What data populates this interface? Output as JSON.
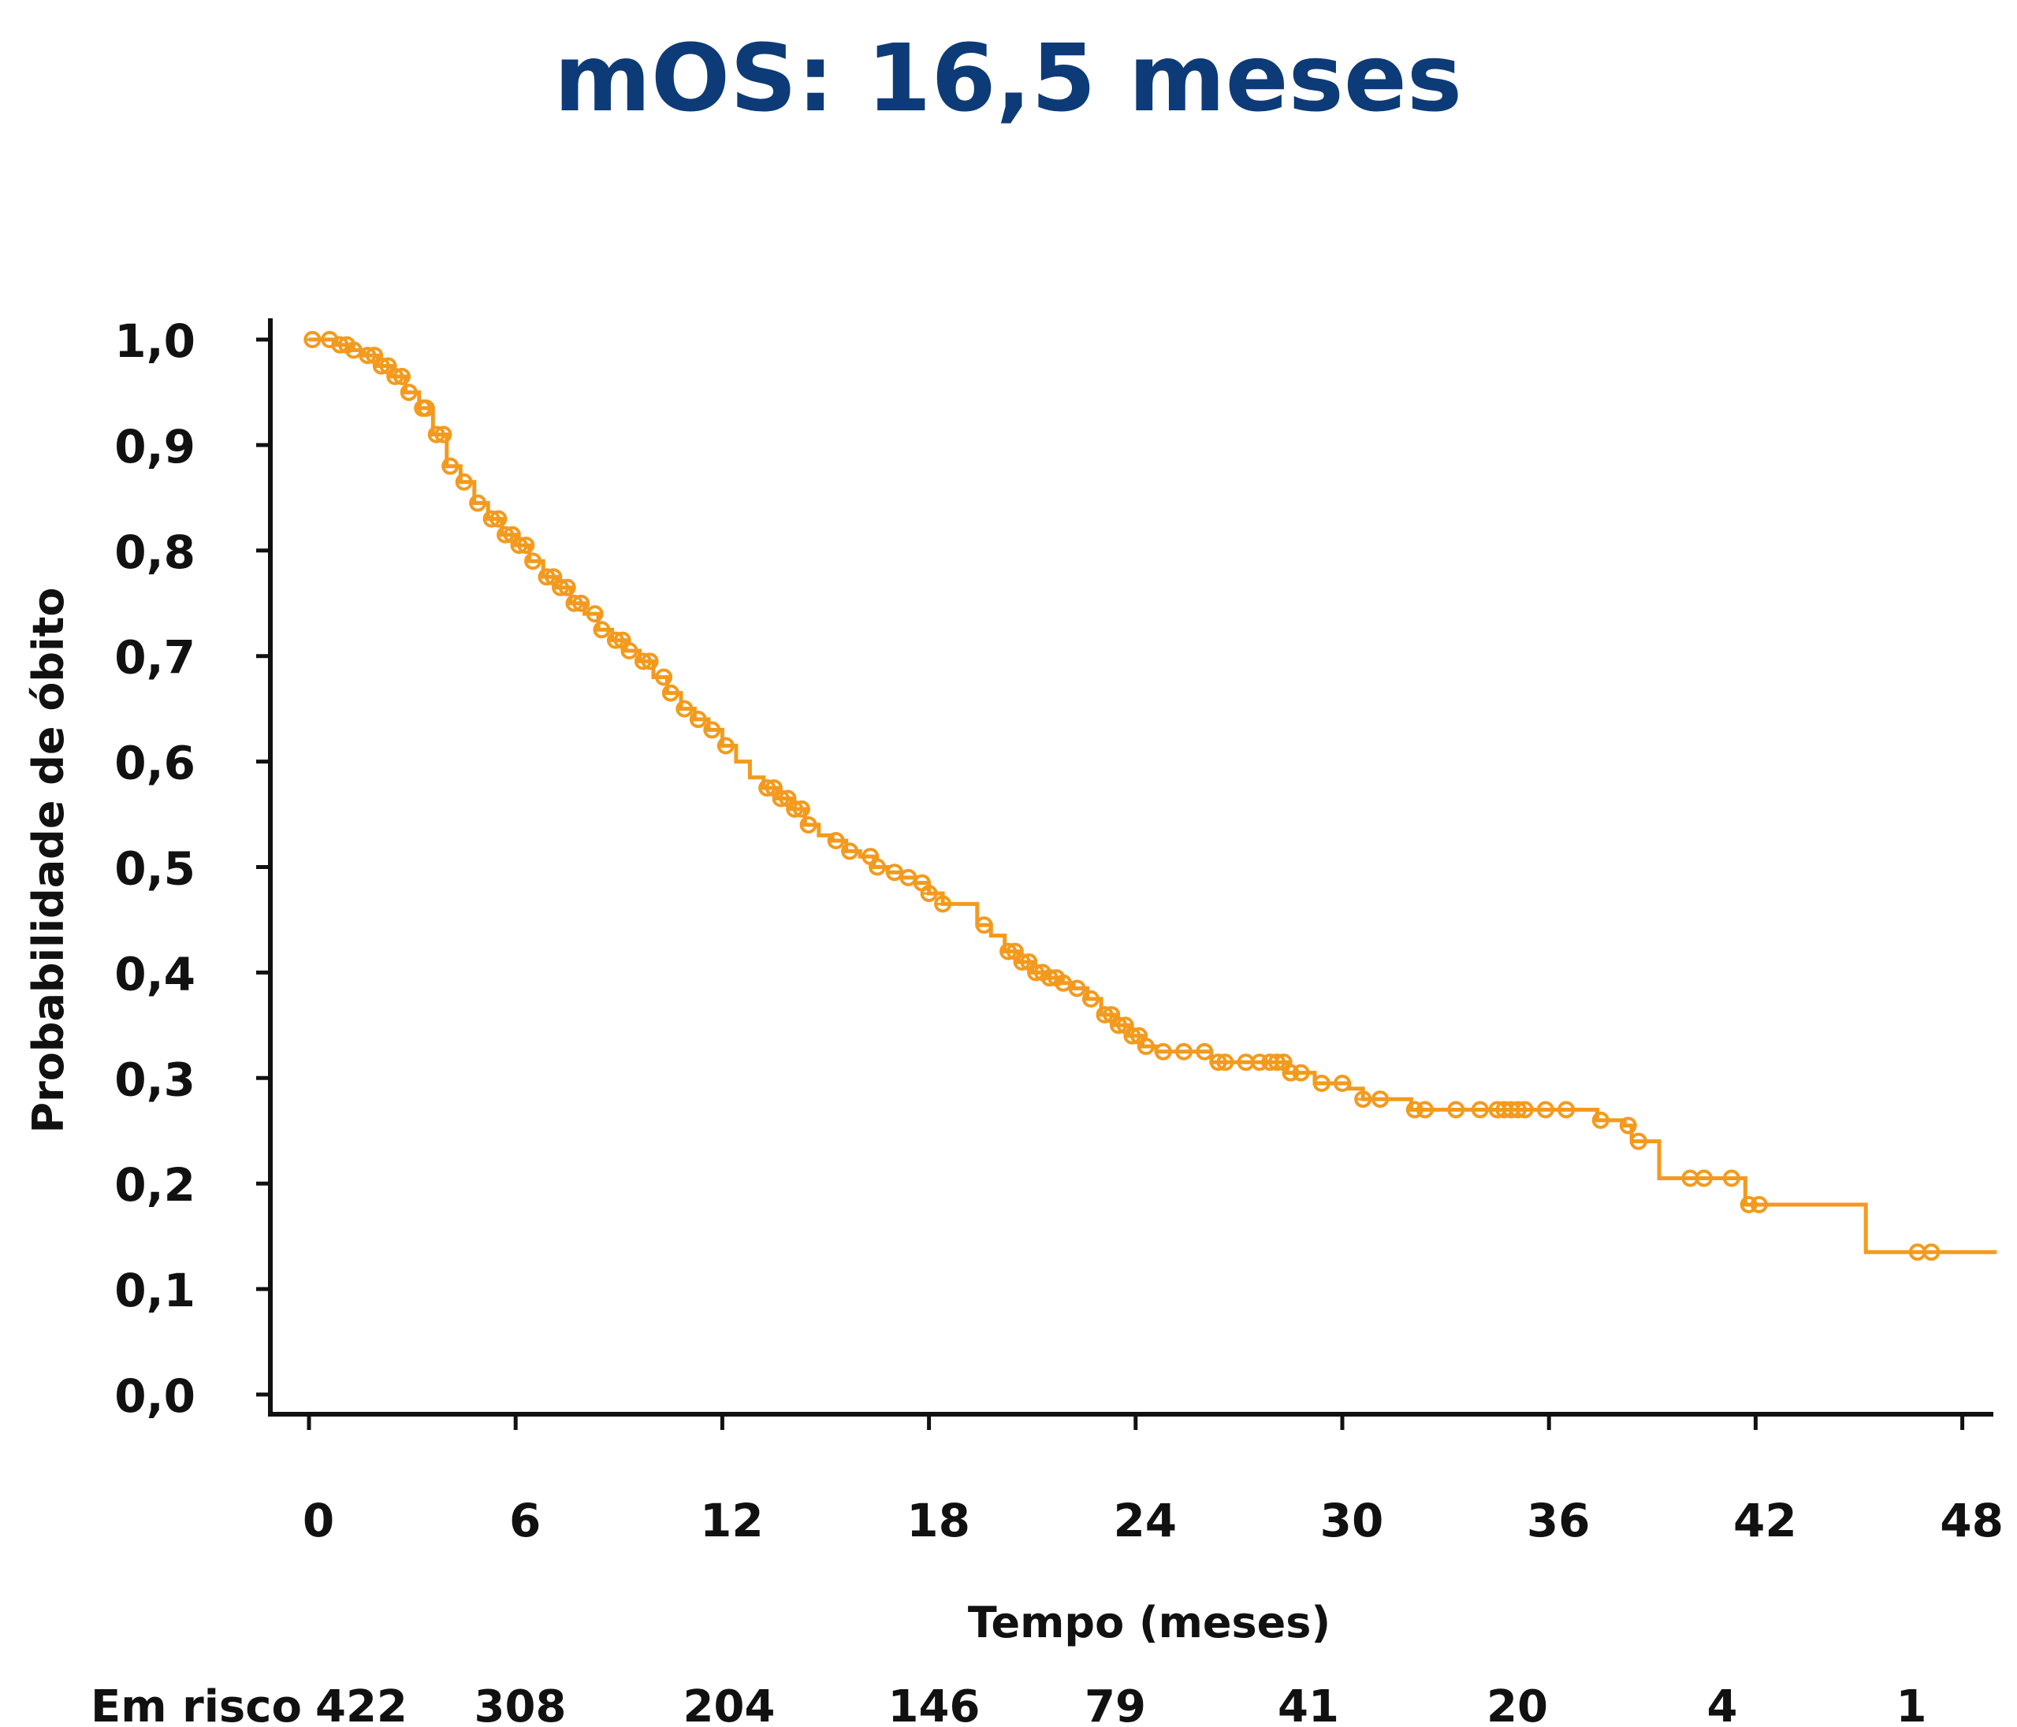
{
  "chart_data": {
    "type": "line",
    "title": "mOS: 16,5 meses",
    "xlabel": "Tempo (meses)",
    "ylabel": "Probabilidade de óbito",
    "xlim": [
      0,
      49
    ],
    "ylim": [
      0,
      1
    ],
    "grid": false,
    "x_ticks": [
      0,
      6,
      12,
      18,
      24,
      30,
      36,
      42,
      48
    ],
    "x_tick_labels": [
      "0",
      "6",
      "12",
      "18",
      "24",
      "30",
      "36",
      "42",
      "48"
    ],
    "y_ticks": [
      0,
      0.1,
      0.2,
      0.3,
      0.4,
      0.5,
      0.6,
      0.7,
      0.8,
      0.9,
      1.0
    ],
    "y_tick_labels": [
      "0,0",
      "0,1",
      "0,2",
      "0,3",
      "0,4",
      "0,5",
      "0,6",
      "0,7",
      "0,8",
      "0,9",
      "1,0"
    ],
    "color": "#f39a1e",
    "series": [
      {
        "name": "OS",
        "step_points": [
          [
            0,
            1.0
          ],
          [
            0.8,
            0.995
          ],
          [
            1.2,
            0.99
          ],
          [
            1.6,
            0.985
          ],
          [
            2.0,
            0.975
          ],
          [
            2.4,
            0.965
          ],
          [
            2.8,
            0.95
          ],
          [
            3.2,
            0.935
          ],
          [
            3.6,
            0.91
          ],
          [
            4.0,
            0.88
          ],
          [
            4.4,
            0.865
          ],
          [
            4.8,
            0.845
          ],
          [
            5.2,
            0.83
          ],
          [
            5.6,
            0.815
          ],
          [
            6.0,
            0.805
          ],
          [
            6.4,
            0.79
          ],
          [
            6.8,
            0.775
          ],
          [
            7.2,
            0.765
          ],
          [
            7.6,
            0.75
          ],
          [
            8.0,
            0.74
          ],
          [
            8.4,
            0.725
          ],
          [
            8.8,
            0.715
          ],
          [
            9.2,
            0.705
          ],
          [
            9.6,
            0.695
          ],
          [
            10.0,
            0.68
          ],
          [
            10.4,
            0.665
          ],
          [
            10.8,
            0.65
          ],
          [
            11.2,
            0.64
          ],
          [
            11.6,
            0.63
          ],
          [
            12.0,
            0.615
          ],
          [
            12.4,
            0.6
          ],
          [
            12.8,
            0.585
          ],
          [
            13.2,
            0.575
          ],
          [
            13.6,
            0.565
          ],
          [
            14.0,
            0.555
          ],
          [
            14.4,
            0.54
          ],
          [
            14.8,
            0.53
          ],
          [
            15.2,
            0.525
          ],
          [
            15.6,
            0.515
          ],
          [
            16.0,
            0.51
          ],
          [
            16.4,
            0.5
          ],
          [
            16.8,
            0.495
          ],
          [
            17.2,
            0.49
          ],
          [
            17.6,
            0.485
          ],
          [
            18.0,
            0.475
          ],
          [
            18.4,
            0.465
          ],
          [
            19.2,
            0.465
          ],
          [
            19.4,
            0.445
          ],
          [
            19.8,
            0.435
          ],
          [
            20.2,
            0.42
          ],
          [
            20.6,
            0.41
          ],
          [
            21.0,
            0.4
          ],
          [
            21.4,
            0.395
          ],
          [
            21.8,
            0.39
          ],
          [
            22.2,
            0.385
          ],
          [
            22.6,
            0.375
          ],
          [
            23.0,
            0.36
          ],
          [
            23.4,
            0.35
          ],
          [
            23.8,
            0.34
          ],
          [
            24.2,
            0.33
          ],
          [
            24.6,
            0.325
          ],
          [
            26.0,
            0.325
          ],
          [
            26.2,
            0.315
          ],
          [
            28.0,
            0.315
          ],
          [
            28.4,
            0.305
          ],
          [
            29.2,
            0.295
          ],
          [
            30.2,
            0.29
          ],
          [
            30.6,
            0.28
          ],
          [
            31.6,
            0.28
          ],
          [
            32.0,
            0.27
          ],
          [
            37.2,
            0.27
          ],
          [
            37.4,
            0.26
          ],
          [
            38.2,
            0.255
          ],
          [
            38.4,
            0.24
          ],
          [
            39.0,
            0.24
          ],
          [
            39.2,
            0.205
          ],
          [
            41.5,
            0.205
          ],
          [
            41.7,
            0.18
          ],
          [
            45.0,
            0.18
          ],
          [
            45.2,
            0.135
          ],
          [
            49.0,
            0.135
          ]
        ],
        "censor_times": [
          0.1,
          0.6,
          0.9,
          1.1,
          1.3,
          1.7,
          1.9,
          2.1,
          2.3,
          2.5,
          2.7,
          2.9,
          3.3,
          3.4,
          3.7,
          3.9,
          4.1,
          4.5,
          4.9,
          5.3,
          5.5,
          5.7,
          5.9,
          6.1,
          6.3,
          6.5,
          6.9,
          7.1,
          7.3,
          7.5,
          7.7,
          7.9,
          8.3,
          8.5,
          8.9,
          9.1,
          9.3,
          9.7,
          9.9,
          10.3,
          10.5,
          10.9,
          11.3,
          11.7,
          12.1,
          13.3,
          13.5,
          13.7,
          13.9,
          14.1,
          14.3,
          14.5,
          15.3,
          15.7,
          16.3,
          16.5,
          17.0,
          17.4,
          17.8,
          18.0,
          18.4,
          19.6,
          20.3,
          20.5,
          20.7,
          20.9,
          21.1,
          21.3,
          21.5,
          21.7,
          21.9,
          22.3,
          22.7,
          23.1,
          23.3,
          23.5,
          23.7,
          23.9,
          24.1,
          24.3,
          24.8,
          25.4,
          26.0,
          26.4,
          26.6,
          27.2,
          27.6,
          27.9,
          28.1,
          28.3,
          28.5,
          28.8,
          29.4,
          30.0,
          30.6,
          31.1,
          32.1,
          32.4,
          33.3,
          34.0,
          34.5,
          34.7,
          34.9,
          35.1,
          35.3,
          35.9,
          36.5,
          37.5,
          38.3,
          38.6,
          40.1,
          40.5,
          41.3,
          41.8,
          42.1,
          46.7,
          47.1
        ]
      }
    ],
    "risk_table": {
      "label": "Em risco",
      "values": [
        "422",
        "308",
        "204",
        "146",
        "79",
        "41",
        "20",
        "4",
        "1"
      ]
    }
  }
}
